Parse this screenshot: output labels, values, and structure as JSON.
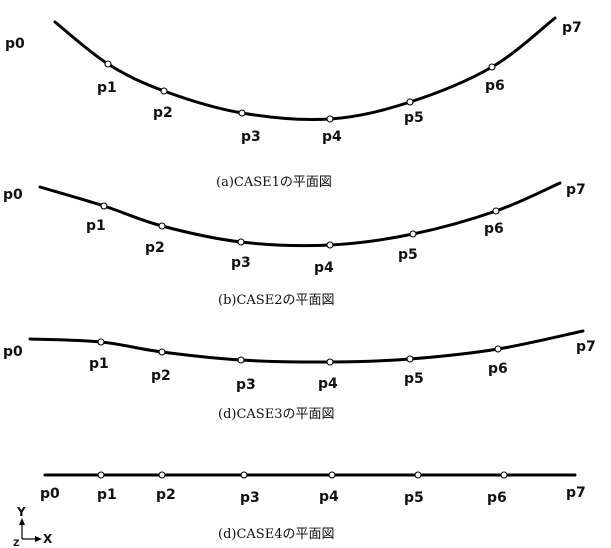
{
  "panels": [
    {
      "caption": "(a)CASE1の平面図",
      "points": [
        "p0",
        "p1",
        "p2",
        "p3",
        "p4",
        "p5",
        "p6",
        "p7"
      ]
    },
    {
      "caption": "(b)CASE2の平面図",
      "points": [
        "p0",
        "p1",
        "p2",
        "p3",
        "p4",
        "p5",
        "p6",
        "p7"
      ]
    },
    {
      "caption": "(d)CASE3の平面図",
      "points": [
        "p0",
        "p1",
        "p2",
        "p3",
        "p4",
        "p5",
        "p6",
        "p7"
      ]
    },
    {
      "caption": "(d)CASE4の平面図",
      "points": [
        "p0",
        "p1",
        "p2",
        "p3",
        "p4",
        "p5",
        "p6",
        "p7"
      ]
    }
  ],
  "axes": {
    "y_label": "Y",
    "x_label": "X",
    "z_label": "Z"
  }
}
